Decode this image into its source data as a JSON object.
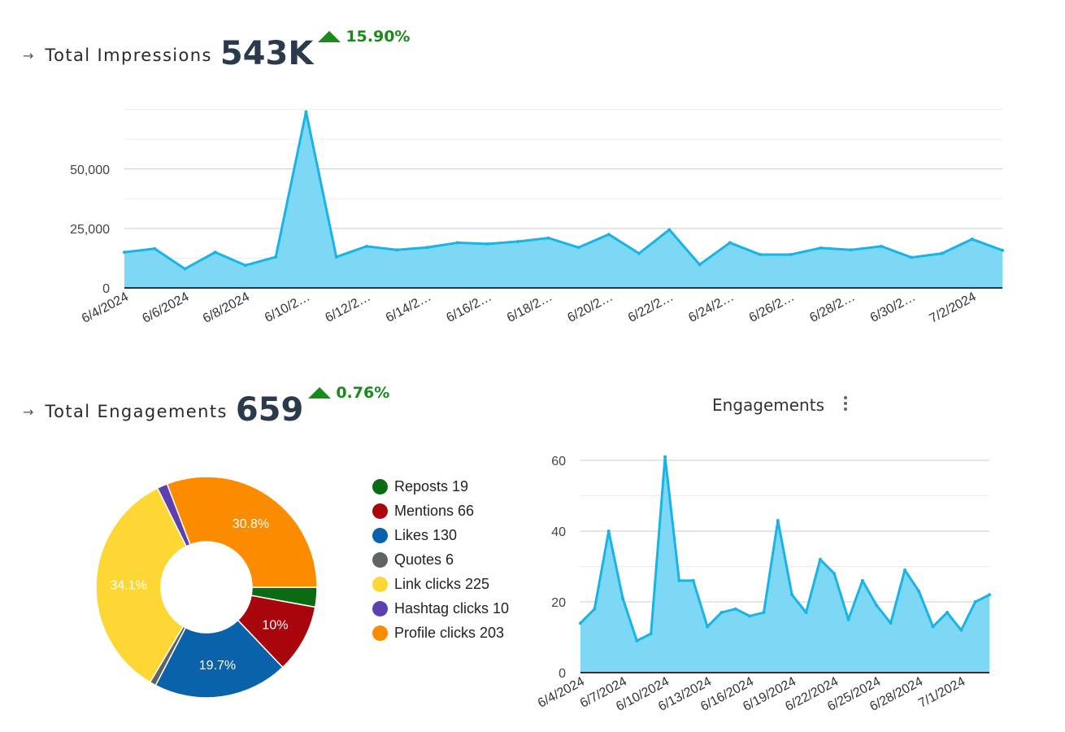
{
  "impressions": {
    "label": "Total Impressions",
    "value": "543K",
    "delta": "15.90%",
    "arrow": "→"
  },
  "engagements": {
    "label": "Total Engagements",
    "value": "659",
    "delta": "0.76%",
    "arrow": "→",
    "chart_title": "Engagements"
  },
  "colors": {
    "area_fill": "#7dd8f5",
    "line": "#1ab3e6",
    "positive": "#1a8a1a"
  },
  "chart_data": [
    {
      "type": "area",
      "title": "",
      "x": [
        "6/4/2024",
        "6/5/2024",
        "6/6/2024",
        "6/7/2024",
        "6/8/2024",
        "6/9/2024",
        "6/10/2024",
        "6/11/2024",
        "6/12/2024",
        "6/13/2024",
        "6/14/2024",
        "6/15/2024",
        "6/16/2024",
        "6/17/2024",
        "6/18/2024",
        "6/19/2024",
        "6/20/2024",
        "6/21/2024",
        "6/22/2024",
        "6/23/2024",
        "6/24/2024",
        "6/25/2024",
        "6/26/2024",
        "6/27/2024",
        "6/28/2024",
        "6/29/2024",
        "6/30/2024",
        "7/1/2024",
        "7/2/2024",
        "7/3/2024"
      ],
      "x_tick_labels": [
        "6/4/2024",
        "6/6/2024",
        "6/8/2024",
        "6/10/2…",
        "6/12/2…",
        "6/14/2…",
        "6/16/2…",
        "6/18/2…",
        "6/20/2…",
        "6/22/2…",
        "6/24/2…",
        "6/26/2…",
        "6/28/2…",
        "6/30/2…",
        "7/2/2024"
      ],
      "series": [
        {
          "values": [
            15000,
            16500,
            8000,
            15000,
            9500,
            13000,
            74000,
            13000,
            17500,
            16000,
            17000,
            19000,
            18500,
            19500,
            21000,
            17000,
            22500,
            14500,
            24500,
            9800,
            19000,
            14000,
            14000,
            16800,
            16000,
            17500,
            12800,
            14500,
            20500,
            15800
          ]
        }
      ],
      "yticks": [
        0,
        25000,
        50000
      ],
      "ytick_labels": [
        "0",
        "25,000",
        "50,000"
      ],
      "ylim": [
        0,
        80000
      ],
      "grid": true
    },
    {
      "type": "pie",
      "title": "",
      "donut": true,
      "slices": [
        {
          "label": "Reposts",
          "value": 19,
          "color": "#0b6b12",
          "pct_label": ""
        },
        {
          "label": "Mentions",
          "value": 66,
          "color": "#a8060c",
          "pct_label": "10%"
        },
        {
          "label": "Likes",
          "value": 130,
          "color": "#0a62aa",
          "pct_label": "19.7%"
        },
        {
          "label": "Quotes",
          "value": 6,
          "color": "#5f6368",
          "pct_label": ""
        },
        {
          "label": "Link clicks",
          "value": 225,
          "color": "#fdd835",
          "pct_label": "34.1%"
        },
        {
          "label": "Hashtag clicks",
          "value": 10,
          "color": "#5e3fae",
          "pct_label": ""
        },
        {
          "label": "Profile clicks",
          "value": 203,
          "color": "#fb8c00",
          "pct_label": "30.8%"
        }
      ],
      "legend_entries": [
        "Reposts 19",
        "Mentions 66",
        "Likes 130",
        "Quotes 6",
        "Link clicks 225",
        "Hashtag clicks 10",
        "Profile clicks 203"
      ],
      "legend": "right"
    },
    {
      "type": "area",
      "title": "Engagements",
      "x": [
        "6/4/2024",
        "6/5/2024",
        "6/6/2024",
        "6/7/2024",
        "6/8/2024",
        "6/9/2024",
        "6/10/2024",
        "6/11/2024",
        "6/12/2024",
        "6/13/2024",
        "6/14/2024",
        "6/15/2024",
        "6/16/2024",
        "6/17/2024",
        "6/18/2024",
        "6/19/2024",
        "6/20/2024",
        "6/21/2024",
        "6/22/2024",
        "6/23/2024",
        "6/24/2024",
        "6/25/2024",
        "6/26/2024",
        "6/27/2024",
        "6/28/2024",
        "6/29/2024",
        "6/30/2024",
        "7/1/2024",
        "7/2/2024",
        "7/3/2024"
      ],
      "x_tick_labels": [
        "6/4/2024",
        "6/7/2024",
        "6/10/2024",
        "6/13/2024",
        "6/16/2024",
        "6/19/2024",
        "6/22/2024",
        "6/25/2024",
        "6/28/2024",
        "7/1/2024"
      ],
      "series": [
        {
          "values": [
            14,
            18,
            40,
            21,
            9,
            11,
            61,
            26,
            26,
            13,
            17,
            18,
            16,
            17,
            43,
            22,
            17,
            32,
            28,
            15,
            26,
            19,
            14,
            29,
            23,
            13,
            17,
            12,
            20,
            22
          ]
        }
      ],
      "yticks": [
        0,
        20,
        40,
        60
      ],
      "ytick_labels": [
        "0",
        "20",
        "40",
        "60"
      ],
      "ylim": [
        0,
        60
      ],
      "grid": true
    }
  ]
}
